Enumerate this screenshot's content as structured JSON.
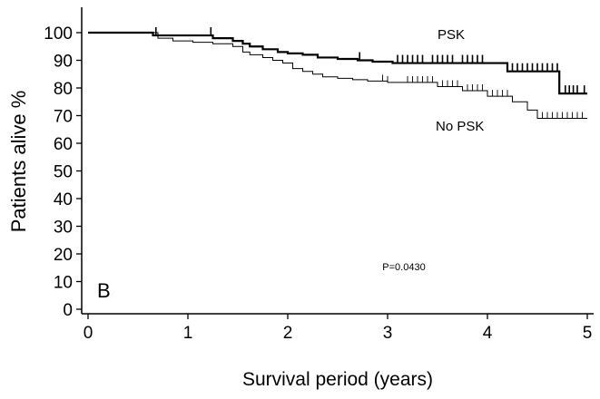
{
  "chart_data": {
    "type": "line",
    "chart_style": "kaplan-meier step plot with censoring tick marks",
    "panel_label": "B",
    "xlabel": "Survival period (years)",
    "ylabel": "Patients alive %",
    "xlim": [
      0,
      5
    ],
    "ylim": [
      0,
      100
    ],
    "xticks": [
      0,
      1,
      2,
      3,
      4,
      5
    ],
    "yticks": [
      0,
      10,
      20,
      30,
      40,
      50,
      60,
      70,
      80,
      90,
      100
    ],
    "grid": false,
    "annotation": "P=0.0430",
    "series": [
      {
        "name": "PSK",
        "stroke_weight": "bold",
        "color": "#000000",
        "x": [
          0,
          0.65,
          1.25,
          1.45,
          1.55,
          1.62,
          1.75,
          1.9,
          2.0,
          2.15,
          2.3,
          2.5,
          2.7,
          2.85,
          3.05,
          4.2,
          4.72,
          5.0
        ],
        "y": [
          100,
          99,
          98,
          97,
          96,
          95,
          94,
          93,
          92.5,
          92,
          91,
          90.5,
          90,
          89.5,
          89,
          86,
          78,
          78
        ],
        "censor_x": [
          0.68,
          1.23,
          2.72,
          3.1,
          3.15,
          3.2,
          3.25,
          3.3,
          3.35,
          3.45,
          3.5,
          3.55,
          3.6,
          3.65,
          3.75,
          3.8,
          3.85,
          3.9,
          3.95,
          4.25,
          4.3,
          4.35,
          4.4,
          4.45,
          4.5,
          4.55,
          4.6,
          4.65,
          4.7,
          4.78,
          4.82,
          4.86,
          4.9,
          4.97
        ]
      },
      {
        "name": "No PSK",
        "stroke_weight": "thin",
        "color": "#000000",
        "x": [
          0,
          0.7,
          0.85,
          1.05,
          1.25,
          1.45,
          1.55,
          1.62,
          1.75,
          1.85,
          1.95,
          2.05,
          2.15,
          2.25,
          2.35,
          2.5,
          2.65,
          2.8,
          3.0,
          3.5,
          3.75,
          4.0,
          4.25,
          4.4,
          4.5,
          5.0
        ],
        "y": [
          100,
          98,
          97,
          96.5,
          96,
          95,
          93,
          92,
          91,
          90,
          89,
          87,
          86,
          85,
          84,
          83.5,
          83,
          82.5,
          82,
          80.5,
          79,
          77,
          75,
          72,
          69,
          69
        ],
        "censor_x": [
          2.95,
          3.0,
          3.2,
          3.25,
          3.3,
          3.35,
          3.4,
          3.45,
          3.55,
          3.6,
          3.65,
          3.7,
          3.8,
          3.85,
          3.9,
          3.95,
          4.05,
          4.1,
          4.15,
          4.2,
          4.55,
          4.6,
          4.65,
          4.7,
          4.75,
          4.8,
          4.85,
          4.9,
          4.95
        ]
      }
    ],
    "series_labels": [
      "PSK",
      "No PSK"
    ]
  }
}
